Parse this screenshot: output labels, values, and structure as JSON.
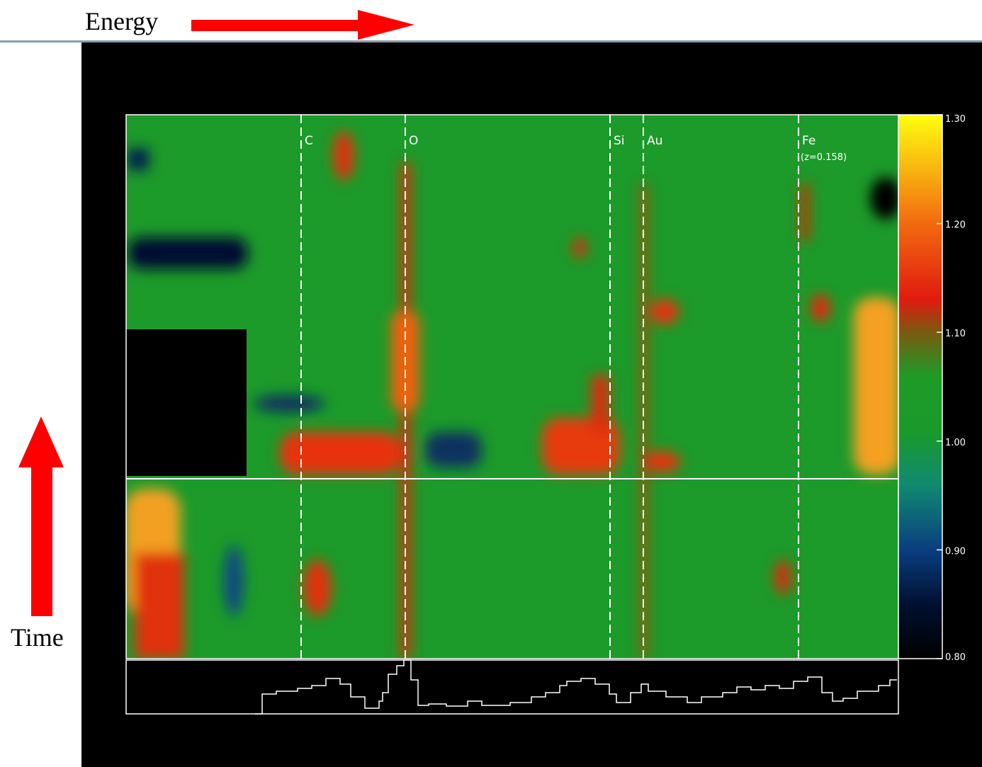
{
  "chart_data": {
    "type": "heatmap",
    "xlabel": "Energy",
    "ylabel": "Time",
    "annotations": [
      "C",
      "O",
      "Si",
      "Au",
      "Fe",
      "(z=0.158)"
    ],
    "colorbar": {
      "lim": [
        0.8,
        1.3
      ],
      "ticks": [
        {
          "value": 0.8,
          "label": "0.80"
        },
        {
          "value": 0.9,
          "label": "0.90"
        },
        {
          "value": 1.0,
          "label": "1.00"
        },
        {
          "value": 1.1,
          "label": "1.10"
        },
        {
          "value": 1.2,
          "label": "1.20"
        },
        {
          "value": 1.3,
          "label": "1.30"
        }
      ]
    }
  }
}
